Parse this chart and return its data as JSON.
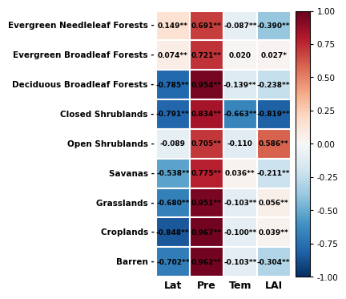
{
  "rows": [
    "Evergreen Needleleaf Forests",
    "Evergreen Broadleaf Forests",
    "Deciduous Broadleaf Forests",
    "Closed Shrublands",
    "Open Shrublands",
    "Savanas",
    "Grasslands",
    "Croplands",
    "Barren"
  ],
  "cols": [
    "Lat",
    "Pre",
    "Tem",
    "LAI"
  ],
  "values": [
    [
      0.149,
      0.691,
      -0.087,
      -0.39
    ],
    [
      0.074,
      0.721,
      0.02,
      0.027
    ],
    [
      -0.785,
      0.954,
      -0.139,
      -0.238
    ],
    [
      -0.791,
      0.834,
      -0.663,
      -0.819
    ],
    [
      -0.089,
      0.705,
      -0.11,
      0.586
    ],
    [
      -0.538,
      0.775,
      0.036,
      -0.211
    ],
    [
      -0.68,
      0.951,
      -0.103,
      0.056
    ],
    [
      -0.848,
      0.967,
      -0.1,
      0.039
    ],
    [
      -0.702,
      0.962,
      -0.103,
      -0.304
    ]
  ],
  "labels": [
    [
      "0.149**",
      "0.691**",
      "-0.087**",
      "-0.390**"
    ],
    [
      "0.074**",
      "0.721**",
      "0.020",
      "0.027*"
    ],
    [
      "-0.785**",
      "0.954**",
      "-0.139**",
      "-0.238**"
    ],
    [
      "-0.791**",
      "0.834**",
      "-0.663**",
      "-0.819**"
    ],
    [
      "-0.089",
      "0.705**",
      "-0.110",
      "0.586**"
    ],
    [
      "-0.538**",
      "0.775**",
      "0.036**",
      "-0.211**"
    ],
    [
      "-0.680**",
      "0.951**",
      "-0.103**",
      "0.056**"
    ],
    [
      "-0.848**",
      "0.967**",
      "-0.100**",
      "0.039**"
    ],
    [
      "-0.702**",
      "0.962**",
      "-0.103**",
      "-0.304**"
    ]
  ],
  "vmin": -1.0,
  "vmax": 1.0,
  "cmap": "RdBu_r",
  "colorbar_ticks": [
    1.0,
    0.75,
    0.5,
    0.25,
    0.0,
    -0.25,
    -0.5,
    -0.75,
    -1.0
  ],
  "colorbar_labels": [
    "1.00",
    "0.75",
    "0.50",
    "0.25",
    "0.00",
    "-0.25",
    "-0.50",
    "-0.75",
    "-1.00"
  ],
  "cell_text_color": "black",
  "cell_fontsize": 6.5,
  "ylabel_fontsize": 7.5,
  "xlabel_fontsize": 9,
  "ylabel_fontweight": "bold",
  "xlabel_fontweight": "bold",
  "cell_text_fontweight": "bold",
  "background_color": "white",
  "linewidth": 1.5,
  "linecolor": "white"
}
